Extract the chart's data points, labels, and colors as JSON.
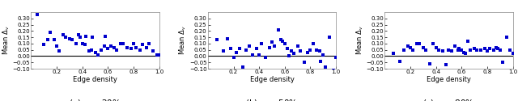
{
  "subplot_captions": [
    "(a) $p_r = 20\\%$",
    "(b) $p_r = 50\\%$",
    "(c) $p_r = 80\\%$"
  ],
  "ylabel": "Mean $\\Delta_v$",
  "xlabel": "Edge density",
  "xlim": [
    0,
    1
  ],
  "ylim": [
    -0.1,
    0.35
  ],
  "yticks": [
    -0.1,
    -0.05,
    0,
    0.05,
    0.1,
    0.15,
    0.2,
    0.25,
    0.3
  ],
  "xticks": [
    0.2,
    0.4,
    0.6,
    0.8,
    1.0
  ],
  "dot_color": "#0000cc",
  "hline_color": "black",
  "scatter_plots": [
    {
      "x": [
        0.05,
        0.1,
        0.13,
        0.15,
        0.18,
        0.2,
        0.22,
        0.25,
        0.27,
        0.3,
        0.32,
        0.35,
        0.37,
        0.38,
        0.4,
        0.42,
        0.43,
        0.45,
        0.47,
        0.48,
        0.5,
        0.52,
        0.55,
        0.57,
        0.58,
        0.6,
        0.62,
        0.65,
        0.67,
        0.7,
        0.72,
        0.75,
        0.78,
        0.8,
        0.82,
        0.85,
        0.87,
        0.9,
        0.92,
        0.95,
        0.98,
        1.0
      ],
      "y": [
        0.33,
        0.09,
        0.13,
        0.19,
        0.13,
        0.08,
        0.04,
        0.17,
        0.15,
        0.14,
        0.13,
        0.1,
        0.17,
        0.15,
        0.1,
        0.09,
        0.16,
        0.04,
        0.05,
        0.15,
        0.03,
        0.01,
        0.05,
        0.08,
        0.16,
        0.06,
        0.08,
        0.07,
        0.05,
        0.1,
        0.1,
        0.07,
        0.06,
        0.1,
        0.07,
        0.05,
        0.09,
        0.07,
        0.1,
        0.04,
        0.01,
        0.01
      ]
    },
    {
      "x": [
        0.07,
        0.12,
        0.15,
        0.18,
        0.2,
        0.22,
        0.25,
        0.27,
        0.3,
        0.32,
        0.35,
        0.38,
        0.4,
        0.42,
        0.45,
        0.48,
        0.5,
        0.52,
        0.55,
        0.57,
        0.58,
        0.6,
        0.62,
        0.63,
        0.65,
        0.67,
        0.7,
        0.72,
        0.75,
        0.78,
        0.8,
        0.82,
        0.85,
        0.87,
        0.88,
        0.9,
        0.92,
        0.95,
        0.98,
        1.0
      ],
      "y": [
        0.13,
        0.04,
        0.14,
        0.06,
        -0.01,
        0.03,
        0.06,
        -0.09,
        0.05,
        0.08,
        0.01,
        0.06,
        0.01,
        0.1,
        -0.01,
        0.07,
        0.11,
        0.08,
        0.21,
        0.13,
        0.12,
        0.1,
        0.06,
        0.0,
        0.04,
        0.02,
        0.08,
        0.04,
        -0.05,
        0.03,
        0.05,
        0.1,
        0.05,
        0.04,
        -0.04,
        0.01,
        -0.09,
        0.15,
        -0.11,
        -0.01
      ]
    },
    {
      "x": [
        0.07,
        0.12,
        0.15,
        0.18,
        0.2,
        0.22,
        0.25,
        0.27,
        0.3,
        0.32,
        0.35,
        0.38,
        0.4,
        0.42,
        0.45,
        0.48,
        0.5,
        0.52,
        0.55,
        0.57,
        0.58,
        0.6,
        0.62,
        0.63,
        0.65,
        0.67,
        0.7,
        0.72,
        0.75,
        0.78,
        0.8,
        0.82,
        0.85,
        0.87,
        0.88,
        0.9,
        0.92,
        0.95,
        0.98,
        1.0
      ],
      "y": [
        0.02,
        -0.04,
        0.05,
        0.08,
        0.07,
        0.05,
        0.1,
        0.1,
        0.07,
        0.05,
        -0.06,
        0.1,
        0.07,
        0.05,
        0.04,
        -0.07,
        0.05,
        0.04,
        0.08,
        0.05,
        0.06,
        0.05,
        0.03,
        0.02,
        0.12,
        0.05,
        0.06,
        0.05,
        0.05,
        0.06,
        0.04,
        0.06,
        0.05,
        0.07,
        0.06,
        0.05,
        -0.05,
        0.15,
        0.05,
        0.02
      ]
    }
  ],
  "background_color": "white",
  "tick_fontsize": 5,
  "label_fontsize": 6,
  "caption_fontsize": 7.5,
  "marker_size": 5,
  "hline_lw": 0.8
}
